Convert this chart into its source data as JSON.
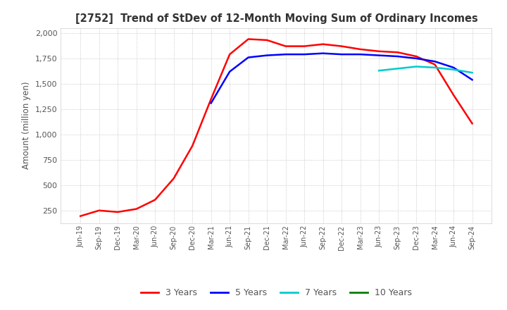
{
  "title": "[2752]  Trend of StDev of 12-Month Moving Sum of Ordinary Incomes",
  "ylabel": "Amount (million yen)",
  "line_colors": [
    "#ff0000",
    "#0000ff",
    "#00cccc",
    "#008000"
  ],
  "line_labels": [
    "3 Years",
    "5 Years",
    "7 Years",
    "10 Years"
  ],
  "ylim": [
    130,
    2050
  ],
  "yticks": [
    250,
    500,
    750,
    1000,
    1250,
    1500,
    1750,
    2000
  ],
  "background_color": "#ffffff",
  "grid_color": "#aaaaaa",
  "dates": [
    "Jun-19",
    "Sep-19",
    "Dec-19",
    "Mar-20",
    "Jun-20",
    "Sep-20",
    "Dec-20",
    "Mar-21",
    "Jun-21",
    "Sep-21",
    "Dec-21",
    "Mar-22",
    "Jun-22",
    "Sep-22",
    "Dec-22",
    "Mar-23",
    "Jun-23",
    "Sep-23",
    "Dec-23",
    "Mar-24",
    "Jun-24",
    "Sep-24"
  ],
  "y_3yr": [
    200,
    255,
    240,
    270,
    360,
    570,
    890,
    1350,
    1790,
    1940,
    1930,
    1870,
    1870,
    1890,
    1870,
    1840,
    1820,
    1810,
    1770,
    1690,
    1390,
    1110
  ],
  "y_5yr": [
    null,
    null,
    null,
    null,
    null,
    null,
    null,
    1310,
    1620,
    1760,
    1780,
    1790,
    1790,
    1800,
    1790,
    1790,
    1780,
    1770,
    1750,
    1720,
    1660,
    1540
  ],
  "y_7yr": [
    null,
    null,
    null,
    null,
    null,
    null,
    null,
    null,
    null,
    null,
    null,
    null,
    null,
    null,
    null,
    null,
    1630,
    1650,
    1670,
    1660,
    1640,
    1610
  ],
  "y_10yr": [
    null,
    null,
    null,
    null,
    null,
    null,
    null,
    null,
    null,
    null,
    null,
    null,
    null,
    null,
    null,
    null,
    null,
    null,
    null,
    null,
    null,
    null
  ]
}
